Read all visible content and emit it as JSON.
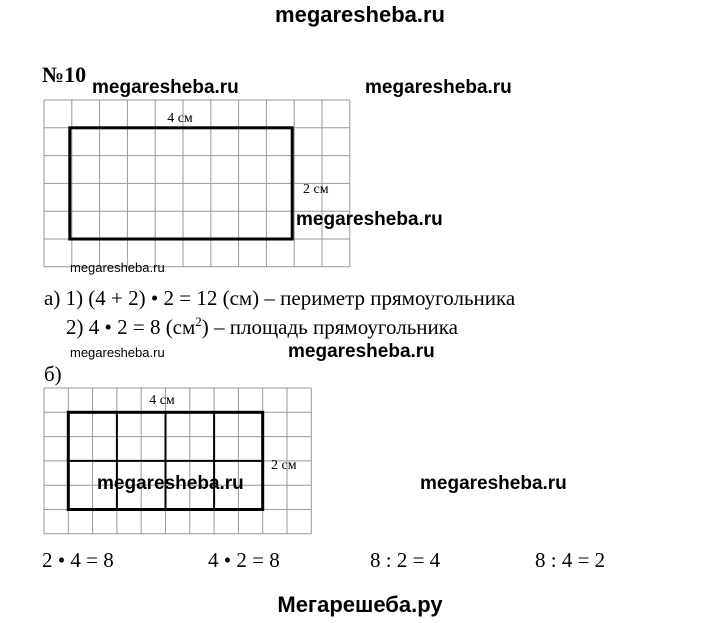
{
  "header": {
    "site": "megaresheba.ru"
  },
  "problem": {
    "number": "№10"
  },
  "watermarks": [
    "megaresheba.ru",
    "megaresheba.ru",
    "megaresheba.ru",
    "megaresheba.ru",
    "megaresheba.ru",
    "megaresheba.ru",
    "megaresheba.ru",
    "megaresheba.ru"
  ],
  "figure_a": {
    "width_label": "4 см",
    "height_label": "2 см"
  },
  "part_a": {
    "line1": "а) 1) (4 + 2) • 2 = 12 (см) – периметр прямоугольника",
    "line2_start": "2) 4 • 2 = 8 (см",
    "line2_sup": "2",
    "line2_end": ") – площадь прямоугольника"
  },
  "part_b": {
    "label": "б)"
  },
  "figure_b": {
    "width_label": "4 см",
    "height_label": "2 см"
  },
  "equations": [
    "2 • 4 = 8",
    "4 • 2 = 8",
    "8 : 2 = 4",
    "8 : 4 = 2"
  ],
  "footer": {
    "site": "Мегарешеба.ру"
  }
}
